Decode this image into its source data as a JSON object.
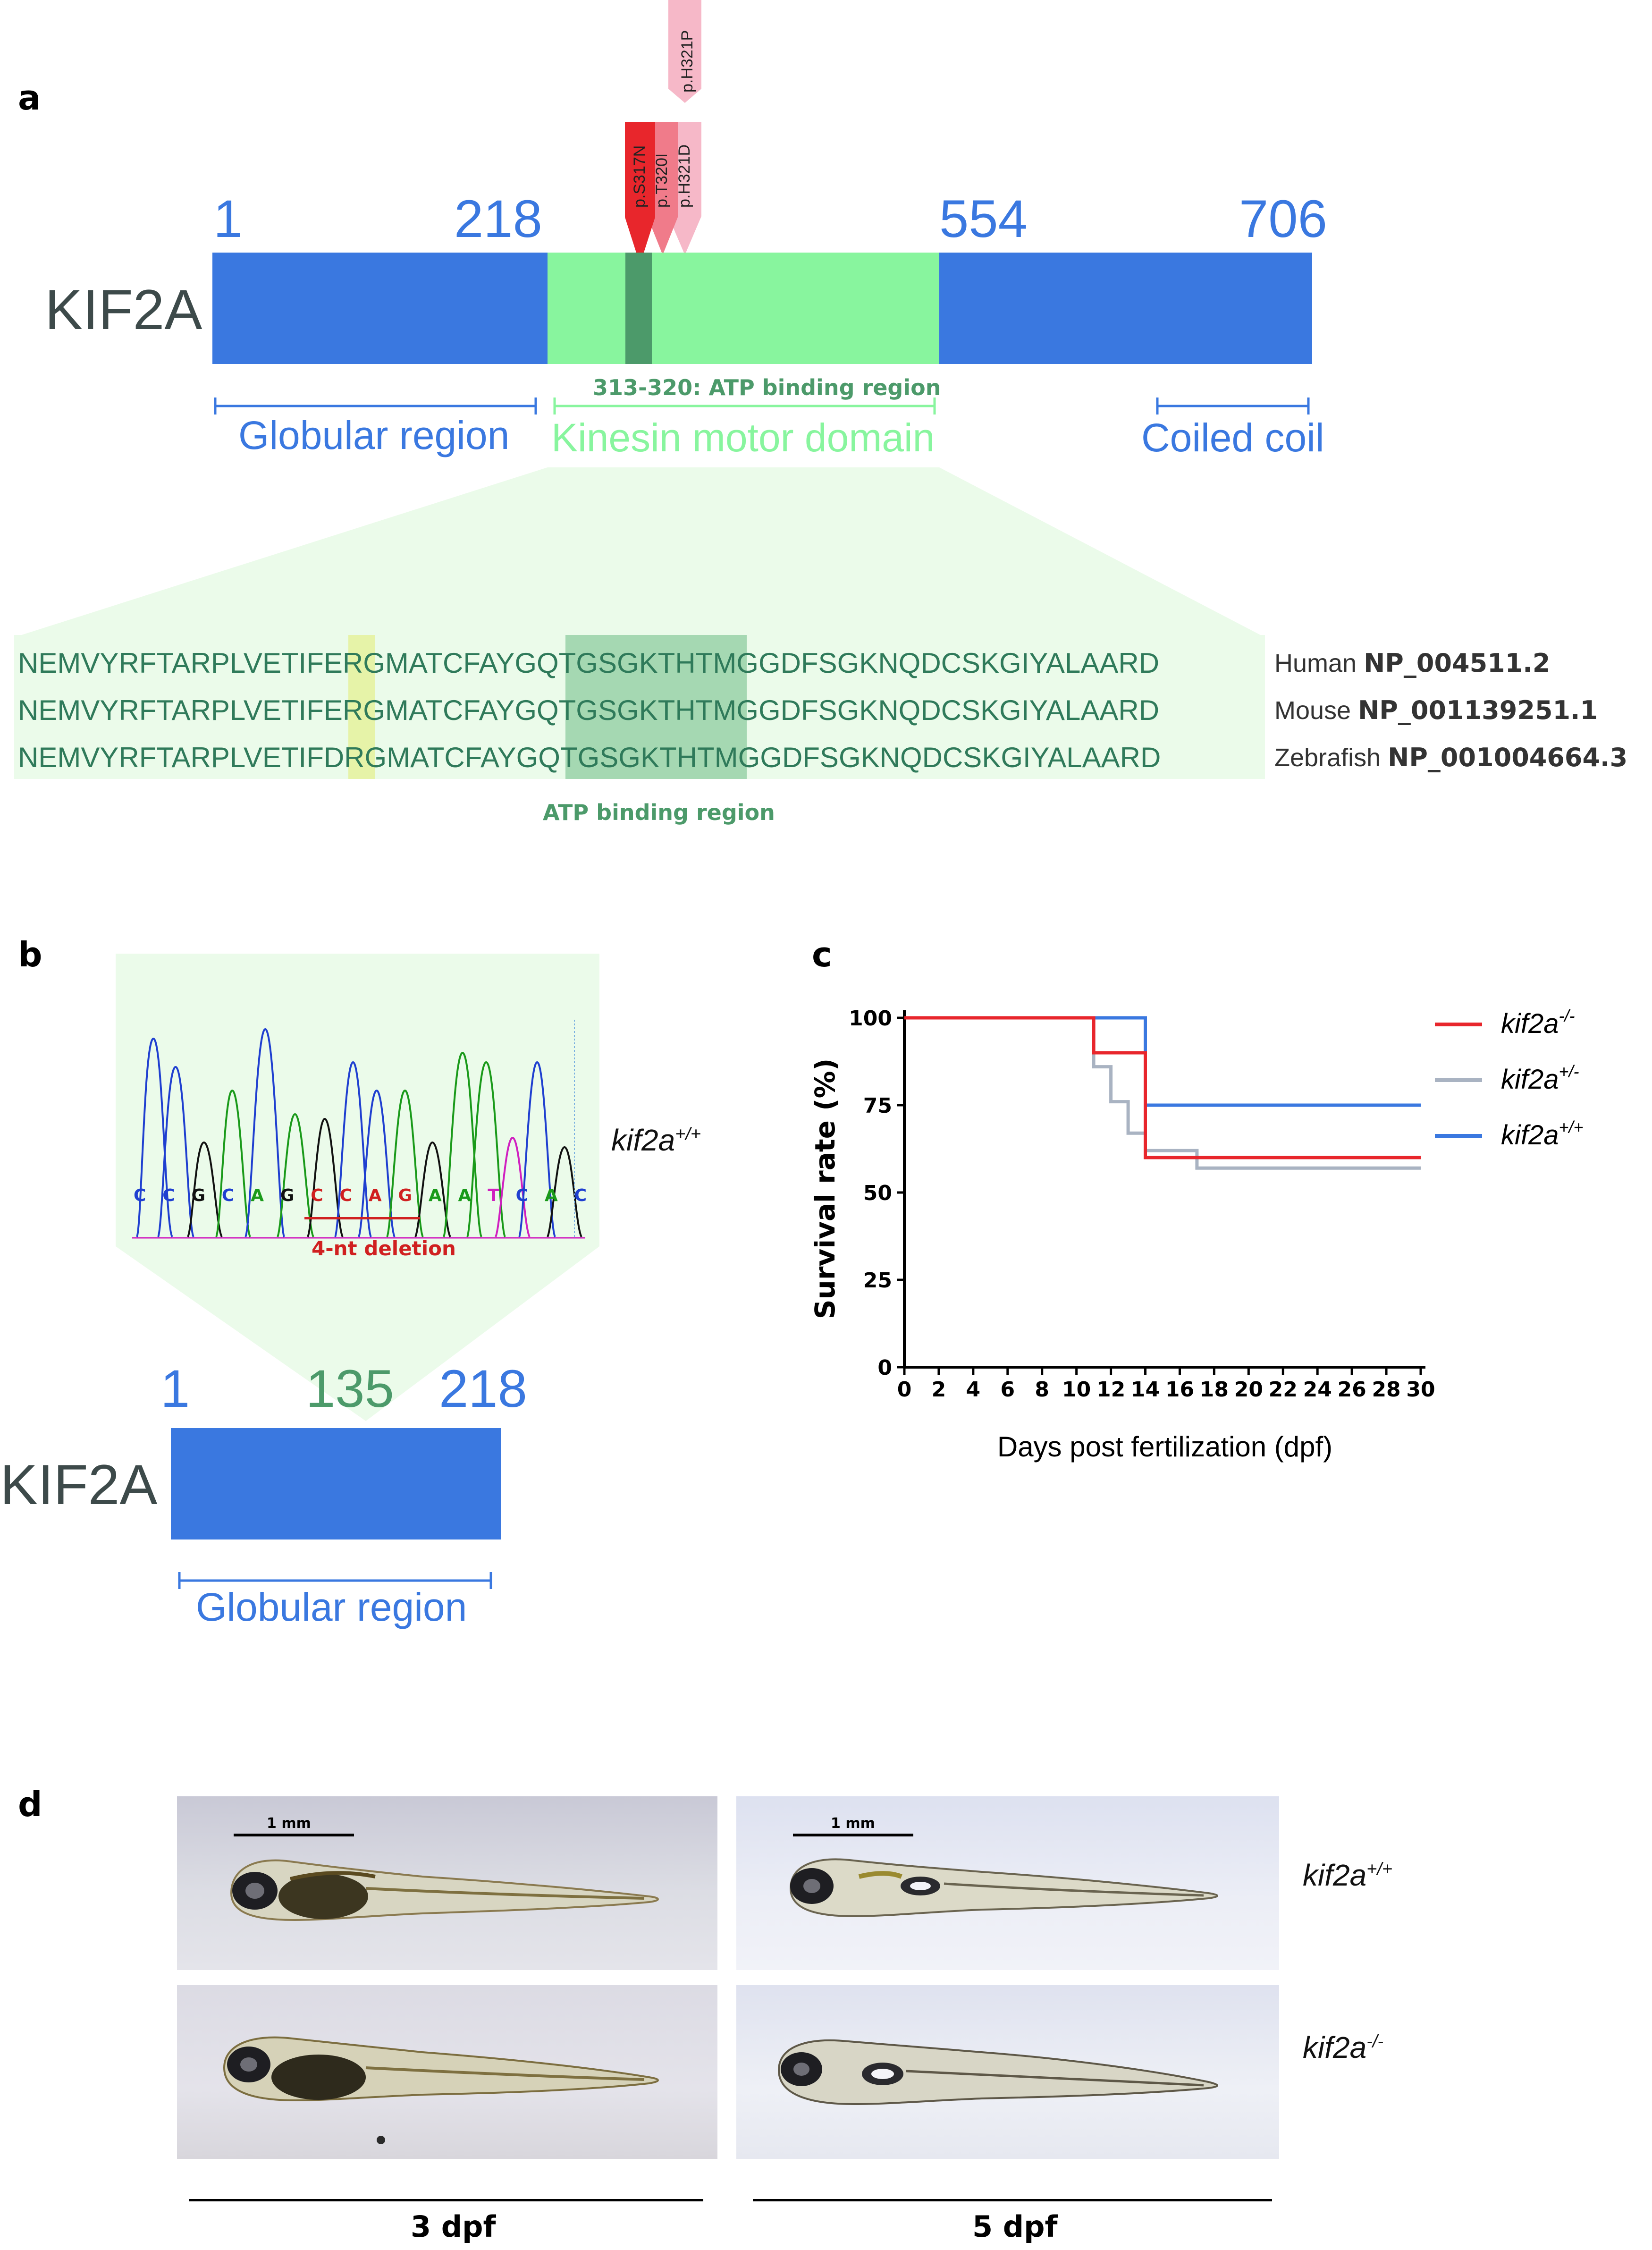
{
  "panel_a": {
    "letter": "a",
    "protein": "KIF2A",
    "positions": [
      "1",
      "218",
      "554",
      "706"
    ],
    "mutations": [
      "p.S317N",
      "p.T320I",
      "p.H321D",
      "p.H321P"
    ],
    "atp_label": "313-320: ATP binding region",
    "regions": [
      "Globular region",
      "Kinesin motor domain",
      "Coiled coil"
    ],
    "alignment": {
      "rows": [
        {
          "seq": "NEMVYRFTARPLVETIFERGMATCFAYGQTGSGKTHTMGGDFSGKNQDCSKGIYALAARD",
          "species": "Human",
          "accession": "NP_004511.2"
        },
        {
          "seq": "NEMVYRFTARPLVETIFERGMATCFAYGQTGSGKTHTMGGDFSGKNQDCSKGIYALAARD",
          "species": "Mouse",
          "accession": "NP_001139251.1"
        },
        {
          "seq": "NEMVYRFTARPLVETIFDRGMATCFAYGQTGSGKTHTMGGDFSGKNQDCSKGIYALAARD",
          "species": "Zebrafish",
          "accession": "NP_001004664.3"
        }
      ],
      "atp_caption": "ATP binding region"
    },
    "colors": {
      "blue": "#3a78e0",
      "motor": "#88f59e",
      "atp": "#4c9a6a",
      "mut_dark": "#e8262c",
      "mut_mid": "#f07b8a",
      "mut_light": "#f6b8c8"
    }
  },
  "panel_b": {
    "letter": "b",
    "bases": [
      "C",
      "C",
      "G",
      "C",
      "A",
      "G",
      "C",
      "C",
      "A",
      "G",
      "A",
      "A",
      "T",
      "C",
      "A",
      "C"
    ],
    "base_colors": [
      "#1f3fd0",
      "#1f3fd0",
      "#111111",
      "#1f3fd0",
      "#1a9a1a",
      "#111111",
      "#d02020",
      "#d02020",
      "#d02020",
      "#d02020",
      "#1a9a1a",
      "#1a9a1a",
      "#d020c0",
      "#1f3fd0",
      "#1a9a1a",
      "#1f3fd0"
    ],
    "deletion_label": "4-nt deletion",
    "genotype": "kif2a",
    "genotype_sup": "+/+",
    "protein": "KIF2A",
    "positions": [
      "1",
      "135",
      "218"
    ],
    "region": "Globular region"
  },
  "panel_c": {
    "letter": "c",
    "legend": [
      {
        "label": "kif2a",
        "sup": "-/-",
        "color": "#e8262c"
      },
      {
        "label": "kif2a",
        "sup": "+/-",
        "color": "#a9b3c2"
      },
      {
        "label": "kif2a",
        "sup": "+/+",
        "color": "#3a78e0"
      }
    ]
  },
  "chart_data": {
    "type": "line",
    "title": "",
    "xlabel": "Days post fertilization (dpf)",
    "ylabel": "Survival rate (%)",
    "xlim": [
      0,
      30
    ],
    "ylim": [
      0,
      100
    ],
    "xticks": [
      "0",
      "2",
      "4",
      "6",
      "8",
      "10",
      "12",
      "14",
      "16",
      "18",
      "20",
      "22",
      "24",
      "26",
      "28",
      "30"
    ],
    "yticks": [
      "0",
      "25",
      "50",
      "75",
      "100"
    ],
    "step": true,
    "series": [
      {
        "name": "kif2a-/-",
        "color": "#e8262c",
        "points": [
          [
            0,
            100
          ],
          [
            11,
            100
          ],
          [
            11,
            90
          ],
          [
            14,
            90
          ],
          [
            14,
            60
          ],
          [
            30,
            60
          ]
        ]
      },
      {
        "name": "kif2a+/-",
        "color": "#a9b3c2",
        "points": [
          [
            0,
            100
          ],
          [
            11,
            100
          ],
          [
            11,
            86
          ],
          [
            12,
            86
          ],
          [
            12,
            76
          ],
          [
            13,
            76
          ],
          [
            13,
            67
          ],
          [
            14,
            67
          ],
          [
            14,
            62
          ],
          [
            17,
            62
          ],
          [
            17,
            57
          ],
          [
            30,
            57
          ]
        ]
      },
      {
        "name": "kif2a+/+",
        "color": "#3a78e0",
        "points": [
          [
            0,
            100
          ],
          [
            14,
            100
          ],
          [
            14,
            75
          ],
          [
            30,
            75
          ]
        ]
      }
    ]
  },
  "panel_d": {
    "letter": "d",
    "scale_label": "1 mm",
    "genotypes": [
      {
        "label": "kif2a",
        "sup": "+/+"
      },
      {
        "label": "kif2a",
        "sup": "-/-"
      }
    ],
    "timepoints": [
      "3 dpf",
      "5 dpf"
    ]
  }
}
